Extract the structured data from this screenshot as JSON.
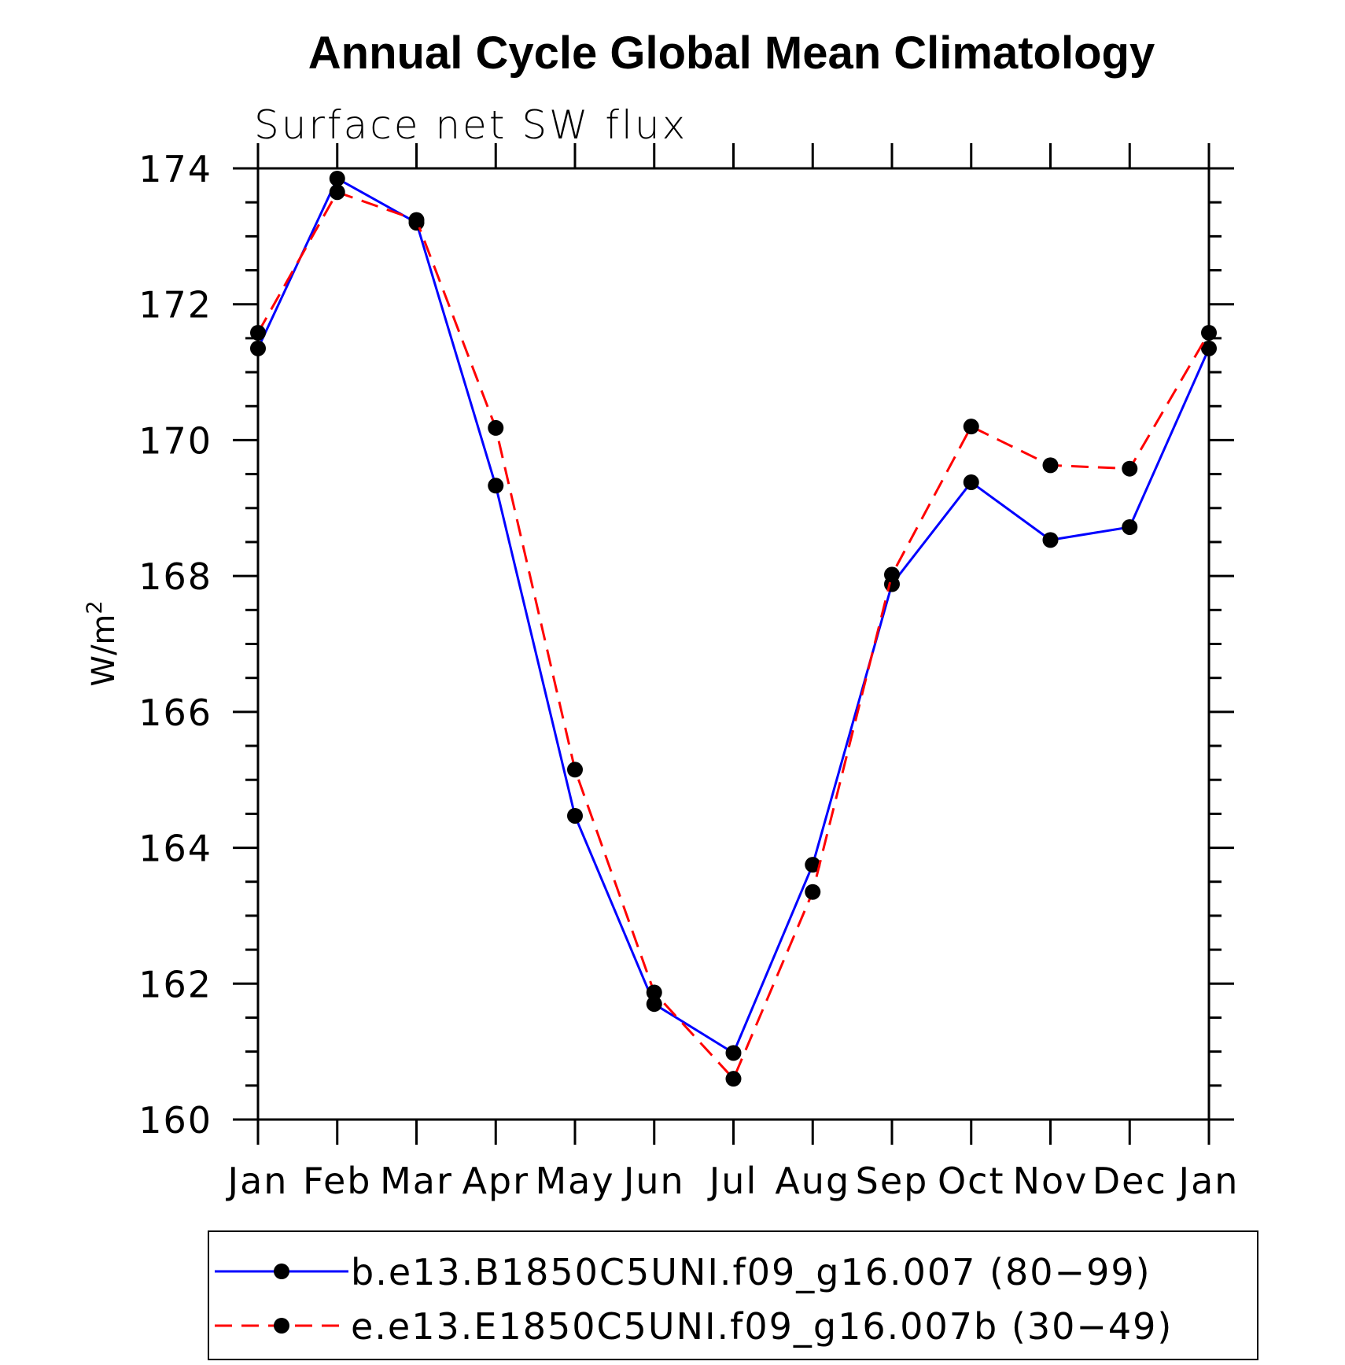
{
  "chart_data": {
    "type": "line",
    "title": "Annual Cycle Global Mean Climatology",
    "subtitle": "Surface net SW flux",
    "ylabel_base": "W/m",
    "ylabel_sup": "2",
    "categories": [
      "Jan",
      "Feb",
      "Mar",
      "Apr",
      "May",
      "Jun",
      "Jul",
      "Aug",
      "Sep",
      "Oct",
      "Nov",
      "Dec",
      "Jan"
    ],
    "ylim": [
      160,
      174
    ],
    "yticks": [
      "160",
      "162",
      "164",
      "166",
      "168",
      "170",
      "172",
      "174"
    ],
    "series": [
      {
        "name": "b.e13.B1850C5UNI.f09_g16.007 (80−99)",
        "color": "#0000ff",
        "dash": "solid",
        "marker": "filled-circle",
        "values": [
          171.35,
          173.85,
          173.2,
          169.33,
          164.47,
          161.7,
          160.98,
          163.75,
          167.88,
          169.38,
          168.53,
          168.72,
          171.35
        ]
      },
      {
        "name": "e.e13.E1850C5UNI.f09_g16.007b (30−49)",
        "color": "#ff0000",
        "dash": "dashed",
        "marker": "filled-circle",
        "values": [
          171.58,
          173.65,
          173.24,
          170.18,
          165.15,
          161.87,
          160.6,
          163.35,
          168.02,
          170.2,
          169.63,
          169.58,
          171.58
        ]
      }
    ],
    "grid": false,
    "legend": "bottom"
  }
}
